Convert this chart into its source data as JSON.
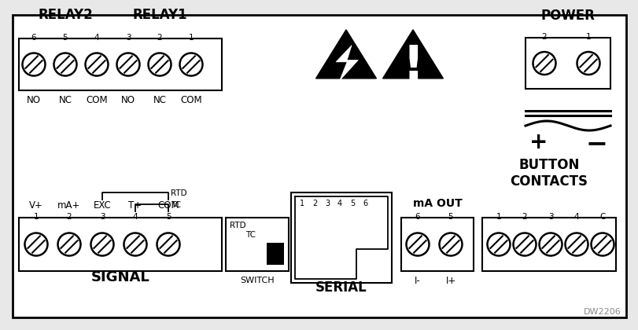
{
  "bg_color": "#ffffff",
  "lc": "#000000",
  "fc": "#ffffff",
  "relay2_label": "RELAY2",
  "relay1_label": "RELAY1",
  "relay_pins": [
    "6",
    "5",
    "4",
    "3",
    "2",
    "1"
  ],
  "relay_sublabels": [
    "NO",
    "NC",
    "COM",
    "NO",
    "NC",
    "COM"
  ],
  "power_label": "POWER",
  "power_pins": [
    "2",
    "1"
  ],
  "signal_label": "SIGNAL",
  "signal_pins": [
    "1",
    "2",
    "3",
    "4",
    "5"
  ],
  "signal_sublabels": [
    "V+",
    "mA+",
    "EXC",
    "T+",
    "COM"
  ],
  "ma_out_label": "mA OUT",
  "ma_out_pins": [
    "6",
    "5"
  ],
  "ma_out_sublabels": [
    "I-",
    "I+"
  ],
  "button_label": "BUTTON\nCONTACTS",
  "button_pins": [
    "1",
    "2",
    "3",
    "4",
    "C"
  ],
  "serial_label": "SERIAL",
  "serial_pins": [
    "1",
    "2",
    "3",
    "4",
    "5",
    "6"
  ],
  "switch_label": "SWITCH",
  "rtd_label": "RTD",
  "tc_label": "TC",
  "dw_label": "DW2206",
  "outer_bg": "#e8e8e8"
}
